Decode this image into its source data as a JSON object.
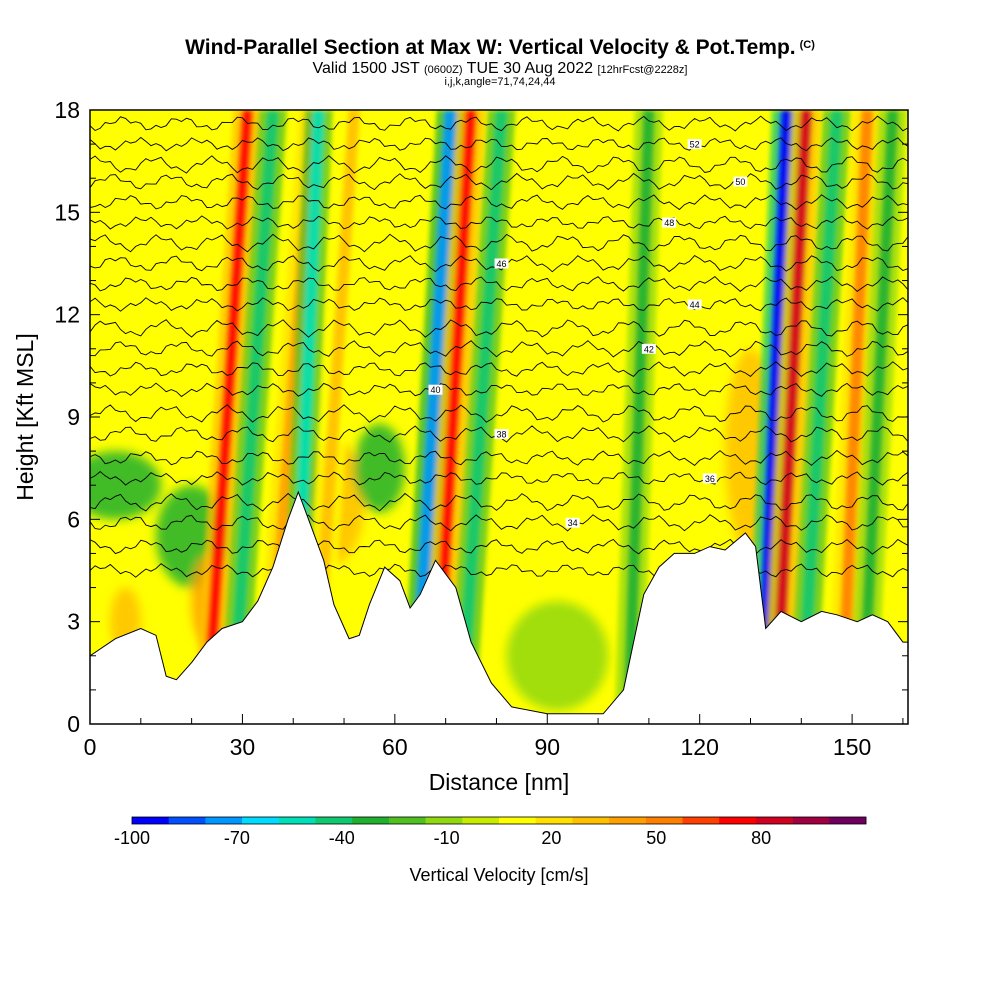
{
  "chart_data": {
    "type": "heatmap",
    "title": "Wind-Parallel Section at Max W: Vertical Velocity & Pot.Temp.",
    "title_mark": "(C)",
    "subtitle_main": "Valid 1500 JST",
    "subtitle_utc": "(0600Z)",
    "subtitle_date": "TUE 30 Aug 2022",
    "subtitle_fcst": "[12hrFcst@2228z]",
    "subline": "i,j,k,angle=71,74,24,44",
    "xlabel": "Distance [nm]",
    "ylabel": "Height [Kft MSL]",
    "xlim": [
      0,
      161
    ],
    "ylim": [
      0,
      18
    ],
    "x_ticks": [
      "0",
      "30",
      "60",
      "90",
      "120",
      "150"
    ],
    "y_ticks": [
      "0",
      "3",
      "6",
      "9",
      "12",
      "15",
      "18"
    ],
    "x_tick_values": [
      0,
      30,
      60,
      90,
      120,
      150
    ],
    "y_tick_values": [
      0,
      3,
      6,
      9,
      12,
      15,
      18
    ],
    "colorbar": {
      "label": "Vertical Velocity [cm/s]",
      "tick_labels": [
        "-100",
        "-70",
        "-40",
        "-10",
        "20",
        "50",
        "80"
      ],
      "tick_values": [
        -100,
        -70,
        -40,
        -10,
        20,
        50,
        80
      ],
      "range": [
        -100,
        110
      ],
      "colors": [
        "#0000ff",
        "#0050ff",
        "#0096ff",
        "#00dcff",
        "#00e0b8",
        "#10c870",
        "#20b030",
        "#50c020",
        "#90d810",
        "#c8ec00",
        "#ffff00",
        "#ffe000",
        "#ffc000",
        "#ffa000",
        "#ff8000",
        "#ff4000",
        "#ff0000",
        "#d00020",
        "#a00040",
        "#700060"
      ]
    },
    "terrain": [
      [
        0,
        2
      ],
      [
        5,
        2.5
      ],
      [
        10,
        2.8
      ],
      [
        13,
        2.6
      ],
      [
        15,
        1.4
      ],
      [
        17,
        1.3
      ],
      [
        20,
        1.8
      ],
      [
        23,
        2.4
      ],
      [
        26,
        2.8
      ],
      [
        30,
        3.0
      ],
      [
        33,
        3.6
      ],
      [
        36,
        4.6
      ],
      [
        39,
        6.0
      ],
      [
        41,
        6.8
      ],
      [
        43,
        6.0
      ],
      [
        46,
        4.8
      ],
      [
        48,
        3.5
      ],
      [
        51,
        2.5
      ],
      [
        53,
        2.6
      ],
      [
        55,
        3.5
      ],
      [
        58,
        4.6
      ],
      [
        61,
        4.2
      ],
      [
        63,
        3.4
      ],
      [
        65,
        3.8
      ],
      [
        68,
        4.8
      ],
      [
        72,
        4.0
      ],
      [
        75,
        2.4
      ],
      [
        79,
        1.2
      ],
      [
        83,
        0.5
      ],
      [
        90,
        0.3
      ],
      [
        96,
        0.3
      ],
      [
        101,
        0.3
      ],
      [
        105,
        1.0
      ],
      [
        107,
        2.4
      ],
      [
        109,
        3.8
      ],
      [
        112,
        4.6
      ],
      [
        115,
        5.0
      ],
      [
        119,
        5.0
      ],
      [
        122,
        5.2
      ],
      [
        125,
        5.1
      ],
      [
        129,
        5.6
      ],
      [
        131,
        5.2
      ],
      [
        133,
        2.8
      ],
      [
        136,
        3.3
      ],
      [
        140,
        3.0
      ],
      [
        144,
        3.3
      ],
      [
        147,
        3.2
      ],
      [
        151,
        3.0
      ],
      [
        154,
        3.2
      ],
      [
        157,
        3.0
      ],
      [
        160,
        2.4
      ],
      [
        161,
        2.4
      ]
    ],
    "streaks": [
      {
        "x_bottom": 23,
        "x_top": 31,
        "value": 70
      },
      {
        "x_bottom": 28,
        "x_top": 36,
        "value": -45
      },
      {
        "x_bottom": 35,
        "x_top": 44,
        "value": 45
      },
      {
        "x_bottom": 40,
        "x_top": 45,
        "value": -55
      },
      {
        "x_bottom": 44,
        "x_top": 52,
        "value": 30
      },
      {
        "x_bottom": 64,
        "x_top": 71,
        "value": -70
      },
      {
        "x_bottom": 68,
        "x_top": 75,
        "value": 70
      },
      {
        "x_bottom": 73,
        "x_top": 81,
        "value": -40
      },
      {
        "x_bottom": 106,
        "x_top": 110,
        "value": -30
      },
      {
        "x_bottom": 132,
        "x_top": 137,
        "value": -90
      },
      {
        "x_bottom": 135,
        "x_top": 141,
        "value": 80
      },
      {
        "x_bottom": 140,
        "x_top": 147,
        "value": -45
      },
      {
        "x_bottom": 148,
        "x_top": 153,
        "value": 55
      },
      {
        "x_bottom": 152,
        "x_top": 158,
        "value": -30
      }
    ],
    "blobs": [
      {
        "x": 5,
        "y": 7.0,
        "rx": 9,
        "ry": 1.0,
        "value": -35
      },
      {
        "x": 7,
        "y": 3.0,
        "rx": 3,
        "ry": 1.0,
        "value": 35
      },
      {
        "x": 20,
        "y": 5.5,
        "rx": 7,
        "ry": 1.5,
        "value": -35
      },
      {
        "x": 23,
        "y": 3.6,
        "rx": 3,
        "ry": 1.3,
        "value": 40
      },
      {
        "x": 48,
        "y": 6.5,
        "rx": 6,
        "ry": 1.8,
        "value": 35
      },
      {
        "x": 57,
        "y": 7.5,
        "rx": 5,
        "ry": 1.3,
        "value": -30
      },
      {
        "x": 92,
        "y": 2.0,
        "rx": 10,
        "ry": 1.6,
        "value": -15
      },
      {
        "x": 130,
        "y": 8.0,
        "rx": 5,
        "ry": 3,
        "value": 30
      }
    ],
    "contours": [
      {
        "theta": 32,
        "y": 4.5,
        "label": "",
        "label_x": null
      },
      {
        "theta": 33,
        "y": 5.2,
        "label": "",
        "label_x": null
      },
      {
        "theta": 34,
        "y": 5.9,
        "label": "34",
        "label_x": 95
      },
      {
        "theta": 35,
        "y": 6.5,
        "label": "",
        "label_x": null
      },
      {
        "theta": 36,
        "y": 7.2,
        "label": "36",
        "label_x": 122
      },
      {
        "theta": 37,
        "y": 7.8,
        "label": "",
        "label_x": null
      },
      {
        "theta": 38,
        "y": 8.5,
        "label": "38",
        "label_x": 81
      },
      {
        "theta": 39,
        "y": 9.1,
        "label": "",
        "label_x": null
      },
      {
        "theta": 40,
        "y": 9.8,
        "label": "40",
        "label_x": 68
      },
      {
        "theta": 41,
        "y": 10.4,
        "label": "",
        "label_x": null
      },
      {
        "theta": 42,
        "y": 11.0,
        "label": "42",
        "label_x": 110
      },
      {
        "theta": 43,
        "y": 11.6,
        "label": "",
        "label_x": null
      },
      {
        "theta": 44,
        "y": 12.3,
        "label": "44",
        "label_x": 119
      },
      {
        "theta": 45,
        "y": 12.9,
        "label": "",
        "label_x": null
      },
      {
        "theta": 46,
        "y": 13.5,
        "label": "46",
        "label_x": 81
      },
      {
        "theta": 47,
        "y": 14.1,
        "label": "",
        "label_x": null
      },
      {
        "theta": 48,
        "y": 14.7,
        "label": "48",
        "label_x": 114
      },
      {
        "theta": 49,
        "y": 15.3,
        "label": "",
        "label_x": null
      },
      {
        "theta": 50,
        "y": 15.9,
        "label": "50",
        "label_x": 128
      },
      {
        "theta": 51,
        "y": 16.4,
        "label": "",
        "label_x": null
      },
      {
        "theta": 52,
        "y": 17.0,
        "label": "52",
        "label_x": 119
      },
      {
        "theta": 53,
        "y": 17.6,
        "label": "",
        "label_x": null
      }
    ]
  }
}
